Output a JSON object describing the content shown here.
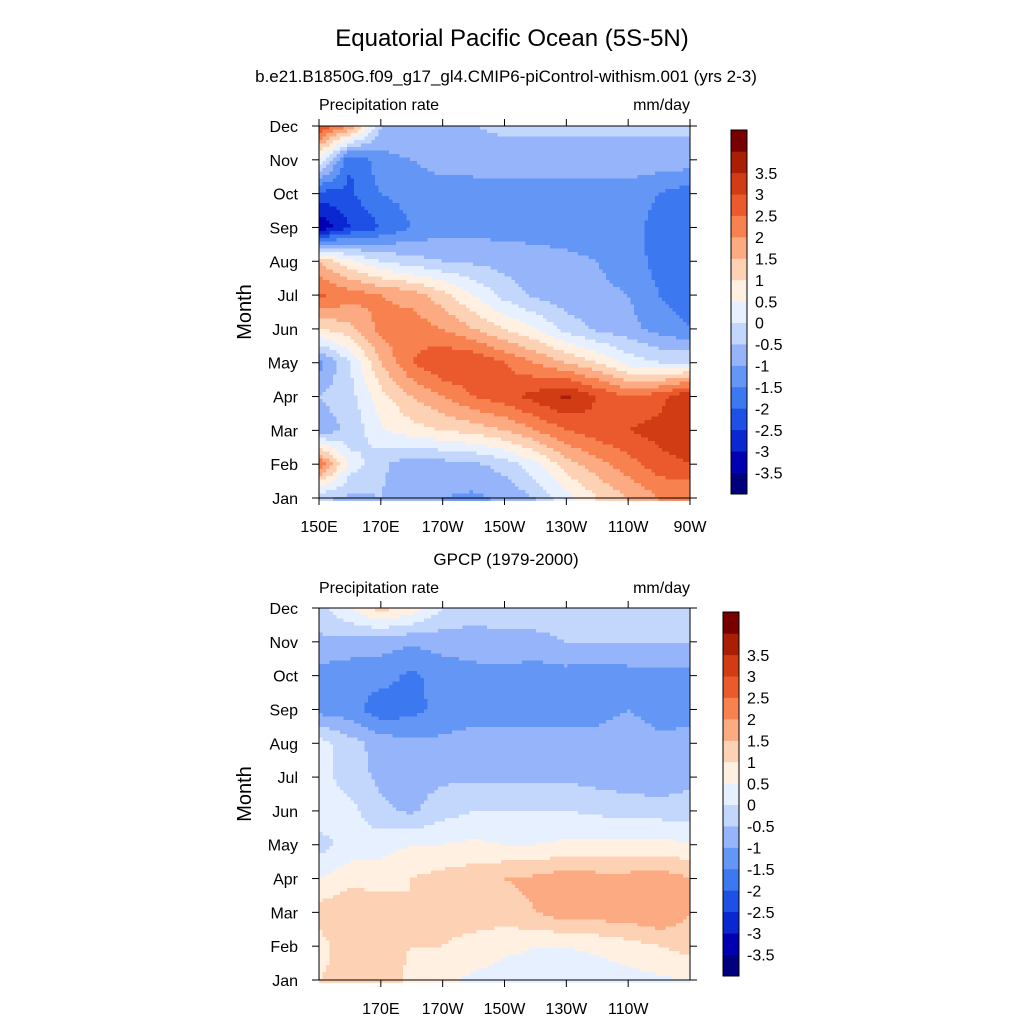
{
  "figure": {
    "title": "Equatorial Pacific Ocean (5S-5N)"
  },
  "colorbar": {
    "colors": [
      "#00007f",
      "#0000b3",
      "#0a28d2",
      "#1e50e6",
      "#3c78f0",
      "#6496f5",
      "#96b4fa",
      "#c3d7fc",
      "#e6f0ff",
      "#fff0e1",
      "#fdd2b4",
      "#fcaa82",
      "#f78250",
      "#eb5a2d",
      "#d23c14",
      "#aa1e05",
      "#780000"
    ],
    "labels": [
      "-3.5",
      "-3",
      "-2.5",
      "-2",
      "-1.5",
      "-1",
      "-0.5",
      "0",
      "0.5",
      "1",
      "1.5",
      "2",
      "2.5",
      "3",
      "3.5"
    ]
  },
  "chart_data": [
    {
      "type": "heatmap",
      "title": "b.e21.B1850G.f09_g17_gl4.CMIP6-piControl-withism.001 (yrs 2-3)",
      "left_string": "Precipitation rate",
      "right_string": "mm/day",
      "ylabel": "Month",
      "y_ticks": [
        "Jan",
        "Feb",
        "Mar",
        "Apr",
        "May",
        "Jun",
        "Jul",
        "Aug",
        "Sep",
        "Oct",
        "Nov",
        "Dec"
      ],
      "x_ticks": [
        "150E",
        "170E",
        "170W",
        "150W",
        "130W",
        "110W",
        "90W"
      ],
      "x_tick_lon": [
        150,
        170,
        190,
        210,
        230,
        250,
        270
      ],
      "xlim": [
        150,
        270
      ],
      "clim": [
        -3.75,
        3.75
      ],
      "value_grid_lon": [
        150,
        160,
        170,
        180,
        190,
        200,
        210,
        220,
        230,
        240,
        250,
        260,
        270
      ],
      "value_grid_month": [
        "Jan",
        "Feb",
        "Mar",
        "Apr",
        "May",
        "Jun",
        "Jul",
        "Aug",
        "Sep",
        "Oct",
        "Nov",
        "Dec"
      ],
      "values": [
        [
          -0.4,
          -0.6,
          -0.5,
          -0.8,
          -1.0,
          -1.1,
          -0.9,
          -0.5,
          0.3,
          1.0,
          1.5,
          2.0,
          2.0
        ],
        [
          2.5,
          0.3,
          -0.4,
          -0.8,
          -0.7,
          -0.6,
          -0.3,
          0.4,
          1.3,
          1.8,
          2.3,
          2.8,
          3.0
        ],
        [
          -0.8,
          -0.4,
          0.4,
          0.8,
          1.0,
          1.2,
          1.5,
          2.0,
          2.5,
          2.8,
          3.0,
          3.2,
          3.5
        ],
        [
          -0.5,
          -0.2,
          0.8,
          1.5,
          2.0,
          2.5,
          2.8,
          3.2,
          3.6,
          3.0,
          2.5,
          2.8,
          3.5
        ],
        [
          -1.2,
          0.0,
          1.5,
          2.5,
          3.0,
          3.0,
          2.5,
          2.0,
          1.5,
          1.0,
          0.3,
          0.0,
          0.0
        ],
        [
          1.0,
          1.3,
          2.2,
          2.3,
          2.0,
          1.5,
          1.0,
          0.5,
          -0.2,
          -0.6,
          -0.8,
          -1.2,
          -1.5
        ],
        [
          2.6,
          2.3,
          2.0,
          1.8,
          1.2,
          0.5,
          -0.2,
          -0.6,
          -0.8,
          -0.9,
          -1.0,
          -1.5,
          -1.8
        ],
        [
          1.5,
          0.6,
          0.0,
          -0.3,
          -0.5,
          -0.6,
          -0.7,
          -0.8,
          -0.9,
          -1.0,
          -1.2,
          -1.7,
          -1.8
        ],
        [
          -3.5,
          -2.5,
          -2.0,
          -1.5,
          -1.2,
          -1.2,
          -1.2,
          -1.2,
          -1.2,
          -1.2,
          -1.3,
          -1.7,
          -1.8
        ],
        [
          -2.2,
          -2.1,
          -1.5,
          -1.3,
          -1.2,
          -1.2,
          -1.2,
          -1.2,
          -1.2,
          -1.2,
          -1.2,
          -1.5,
          -1.8
        ],
        [
          0.5,
          -2.0,
          -1.2,
          -1.0,
          -0.8,
          -0.8,
          -0.7,
          -0.7,
          -0.7,
          -0.7,
          -0.7,
          -0.7,
          -0.7
        ],
        [
          3.0,
          2.0,
          -0.5,
          -0.5,
          -0.5,
          -0.5,
          -0.4,
          -0.4,
          -0.4,
          -0.4,
          -0.4,
          -0.4,
          -0.4
        ]
      ]
    },
    {
      "type": "heatmap",
      "title": "GPCP (1979-2000)",
      "left_string": "Precipitation rate",
      "right_string": "mm/day",
      "ylabel": "Month",
      "y_ticks": [
        "Jan",
        "Feb",
        "Mar",
        "Apr",
        "May",
        "Jun",
        "Jul",
        "Aug",
        "Sep",
        "Oct",
        "Nov",
        "Dec"
      ],
      "x_ticks": [
        "170E",
        "170W",
        "150W",
        "130W",
        "110W"
      ],
      "x_tick_lon": [
        170,
        190,
        210,
        230,
        250
      ],
      "xlim": [
        150,
        270
      ],
      "clim": [
        -3.75,
        3.75
      ],
      "value_grid_lon": [
        150,
        160,
        170,
        180,
        190,
        200,
        210,
        220,
        230,
        240,
        250,
        260,
        270
      ],
      "value_grid_month": [
        "Jan",
        "Feb",
        "Mar",
        "Apr",
        "May",
        "Jun",
        "Jul",
        "Aug",
        "Sep",
        "Oct",
        "Nov",
        "Dec"
      ],
      "values": [
        [
          1.0,
          1.2,
          1.5,
          0.8,
          0.6,
          0.4,
          0.3,
          0.3,
          0.2,
          0.2,
          0.3,
          0.4,
          0.5
        ],
        [
          0.8,
          1.3,
          1.2,
          1.0,
          1.0,
          0.8,
          0.6,
          0.5,
          0.5,
          0.6,
          0.8,
          1.0,
          1.2
        ],
        [
          1.2,
          1.5,
          1.3,
          1.0,
          1.2,
          1.3,
          1.3,
          1.5,
          1.8,
          1.8,
          1.8,
          2.0,
          1.5
        ],
        [
          0.5,
          0.8,
          0.8,
          1.0,
          1.2,
          1.3,
          1.5,
          1.6,
          1.8,
          1.7,
          1.7,
          1.8,
          1.5
        ],
        [
          -0.2,
          0.2,
          0.3,
          0.5,
          0.5,
          0.6,
          0.5,
          0.5,
          0.6,
          0.6,
          0.6,
          0.6,
          0.6
        ],
        [
          0.3,
          0.2,
          -0.4,
          -0.6,
          -0.2,
          0.0,
          0.0,
          0.0,
          0.0,
          -0.1,
          -0.2,
          -0.2,
          -0.3
        ],
        [
          0.3,
          -0.3,
          -0.6,
          -0.7,
          -0.6,
          -0.6,
          -0.6,
          -0.6,
          -0.6,
          -0.7,
          -0.8,
          -0.9,
          -0.6
        ],
        [
          0.2,
          -0.3,
          -0.7,
          -0.9,
          -0.9,
          -0.8,
          -0.8,
          -0.8,
          -0.8,
          -0.8,
          -0.7,
          -0.9,
          -0.8
        ],
        [
          -1.2,
          -1.3,
          -1.8,
          -1.7,
          -1.3,
          -1.2,
          -1.2,
          -1.2,
          -1.2,
          -1.2,
          -1.0,
          -1.2,
          -1.2
        ],
        [
          -1.2,
          -1.3,
          -1.3,
          -1.6,
          -1.3,
          -1.2,
          -1.2,
          -1.3,
          -1.2,
          -1.3,
          -1.2,
          -1.2,
          -1.2
        ],
        [
          -0.6,
          -0.7,
          -0.8,
          -0.9,
          -0.8,
          -0.7,
          -0.6,
          -0.6,
          -0.5,
          -0.5,
          -0.5,
          -0.5,
          -0.5
        ],
        [
          -0.2,
          0.5,
          1.2,
          0.8,
          0.0,
          -0.3,
          -0.3,
          -0.3,
          -0.3,
          -0.3,
          -0.3,
          -0.3,
          -0.3
        ]
      ]
    }
  ]
}
